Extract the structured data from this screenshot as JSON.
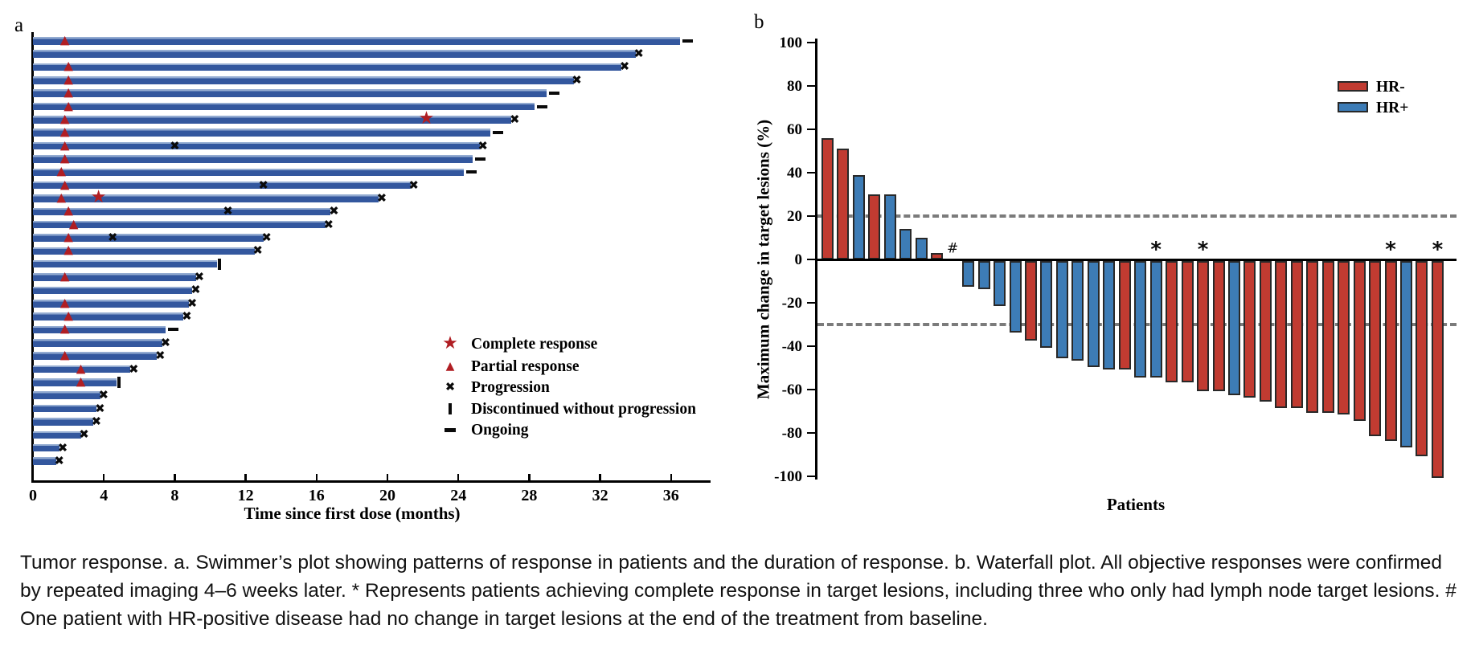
{
  "figure": {
    "panel_a_label": "a",
    "panel_b_label": "b"
  },
  "caption": {
    "text": "Tumor response. a. Swimmer’s plot showing patterns of response in patients and the duration of response. b. Waterfall plot. All objective responses were confirmed by repeated imaging 4–6 weeks later. * Represents patients achieving complete response in target lesions, including three who only had lymph node target lesions. # One patient with HR-positive disease had no change in target lesions at the end of the treatment from baseline."
  },
  "chart_data": [
    {
      "id": "swimmer",
      "type": "bar",
      "orientation": "horizontal",
      "xlabel": "Time since first dose (months)",
      "x_ticks": [
        0,
        4,
        8,
        12,
        16,
        20,
        24,
        28,
        32,
        36
      ],
      "xlim": [
        0,
        38
      ],
      "bar_color": "#33579E",
      "bar_highlight_color": "#93ABD1",
      "marker_red": "#B01E23",
      "marker_black": "#0A0A0A",
      "legend": [
        {
          "marker": "star",
          "label": "Complete response"
        },
        {
          "marker": "triangle",
          "label": "Partial response"
        },
        {
          "marker": "x",
          "label": "Progression"
        },
        {
          "marker": "vbar",
          "label": "Discontinued without progression"
        },
        {
          "marker": "dash",
          "label": "Ongoing"
        }
      ],
      "patients": [
        {
          "duration": 36.5,
          "pr": 1.8,
          "end": "ongoing"
        },
        {
          "duration": 34.0,
          "end": "progression"
        },
        {
          "duration": 33.2,
          "pr": 2.0,
          "end": "progression"
        },
        {
          "duration": 30.5,
          "pr": 2.0,
          "end": "progression"
        },
        {
          "duration": 29.0,
          "pr": 2.0,
          "end": "ongoing"
        },
        {
          "duration": 28.3,
          "pr": 2.0,
          "end": "ongoing"
        },
        {
          "duration": 27.0,
          "pr": 1.8,
          "cr": 22.2,
          "end": "progression"
        },
        {
          "duration": 25.8,
          "pr": 1.8,
          "end": "ongoing"
        },
        {
          "duration": 25.2,
          "pr": 1.8,
          "mid_progression": [
            8.0
          ],
          "end": "progression"
        },
        {
          "duration": 24.8,
          "pr": 1.8,
          "end": "ongoing"
        },
        {
          "duration": 24.3,
          "pr": 1.6,
          "end": "ongoing"
        },
        {
          "duration": 21.3,
          "pr": 1.8,
          "mid_progression": [
            13.0
          ],
          "end": "progression"
        },
        {
          "duration": 19.5,
          "pr": 1.6,
          "cr": 3.7,
          "end": "progression"
        },
        {
          "duration": 16.8,
          "pr": 2.0,
          "mid_progression": [
            11.0
          ],
          "end": "progression"
        },
        {
          "duration": 16.5,
          "pr": 2.3,
          "end": "progression"
        },
        {
          "duration": 13.0,
          "pr": 2.0,
          "mid_progression": [
            4.5
          ],
          "end": "progression"
        },
        {
          "duration": 12.5,
          "pr": 2.0,
          "end": "progression"
        },
        {
          "duration": 10.4,
          "end": "discontinued"
        },
        {
          "duration": 9.2,
          "pr": 1.8,
          "end": "progression"
        },
        {
          "duration": 9.0,
          "end": "progression"
        },
        {
          "duration": 8.8,
          "pr": 1.8,
          "end": "progression"
        },
        {
          "duration": 8.5,
          "pr": 2.0,
          "end": "progression"
        },
        {
          "duration": 7.5,
          "pr": 1.8,
          "end": "ongoing"
        },
        {
          "duration": 7.3,
          "end": "progression"
        },
        {
          "duration": 7.0,
          "pr": 1.8,
          "end": "progression"
        },
        {
          "duration": 5.5,
          "pr": 2.7,
          "end": "progression"
        },
        {
          "duration": 4.7,
          "pr": 2.7,
          "end": "discontinued"
        },
        {
          "duration": 3.8,
          "end": "progression"
        },
        {
          "duration": 3.6,
          "end": "progression"
        },
        {
          "duration": 3.4,
          "end": "progression"
        },
        {
          "duration": 2.7,
          "end": "progression"
        },
        {
          "duration": 1.5,
          "end": "progression"
        },
        {
          "duration": 1.3,
          "end": "progression"
        }
      ]
    },
    {
      "id": "waterfall",
      "type": "bar",
      "ylabel": "Maximum change in target lesions (%)",
      "xlabel": "Patients",
      "y_ticks": [
        100,
        80,
        60,
        40,
        20,
        0,
        -20,
        -40,
        -60,
        -80,
        -100
      ],
      "ylim": [
        -100,
        100
      ],
      "reference_lines": [
        20,
        -30
      ],
      "grid": false,
      "legend_position": "upper right",
      "legend": [
        {
          "label": "HR-",
          "color": "#C13B31"
        },
        {
          "label": "HR+",
          "color": "#3D7CB6"
        }
      ],
      "bar_border_color": "#282828",
      "dashed_line_color": "#7B7B7B",
      "patients": [
        {
          "value": 56,
          "group": "HR-"
        },
        {
          "value": 51,
          "group": "HR-"
        },
        {
          "value": 39,
          "group": "HR+"
        },
        {
          "value": 30,
          "group": "HR-"
        },
        {
          "value": 30,
          "group": "HR+"
        },
        {
          "value": 14,
          "group": "HR+"
        },
        {
          "value": 10,
          "group": "HR+"
        },
        {
          "value": 3,
          "group": "HR-"
        },
        {
          "value": 0,
          "group": "HR+",
          "note": "#"
        },
        {
          "value": -12,
          "group": "HR+"
        },
        {
          "value": -13,
          "group": "HR+"
        },
        {
          "value": -21,
          "group": "HR+"
        },
        {
          "value": -33,
          "group": "HR+"
        },
        {
          "value": -37,
          "group": "HR-"
        },
        {
          "value": -40,
          "group": "HR+"
        },
        {
          "value": -45,
          "group": "HR+"
        },
        {
          "value": -46,
          "group": "HR+"
        },
        {
          "value": -49,
          "group": "HR+"
        },
        {
          "value": -50,
          "group": "HR+"
        },
        {
          "value": -50,
          "group": "HR-"
        },
        {
          "value": -54,
          "group": "HR+"
        },
        {
          "value": -54,
          "group": "HR+",
          "note": "*"
        },
        {
          "value": -56,
          "group": "HR-"
        },
        {
          "value": -56,
          "group": "HR-"
        },
        {
          "value": -60,
          "group": "HR-",
          "note": "*"
        },
        {
          "value": -60,
          "group": "HR-"
        },
        {
          "value": -62,
          "group": "HR+"
        },
        {
          "value": -63,
          "group": "HR-"
        },
        {
          "value": -65,
          "group": "HR-"
        },
        {
          "value": -68,
          "group": "HR-"
        },
        {
          "value": -68,
          "group": "HR-"
        },
        {
          "value": -70,
          "group": "HR-"
        },
        {
          "value": -70,
          "group": "HR-"
        },
        {
          "value": -71,
          "group": "HR-"
        },
        {
          "value": -74,
          "group": "HR-"
        },
        {
          "value": -81,
          "group": "HR-"
        },
        {
          "value": -83,
          "group": "HR-",
          "note": "*"
        },
        {
          "value": -86,
          "group": "HR+"
        },
        {
          "value": -90,
          "group": "HR-"
        },
        {
          "value": -100,
          "group": "HR-",
          "note": "*"
        }
      ]
    }
  ]
}
